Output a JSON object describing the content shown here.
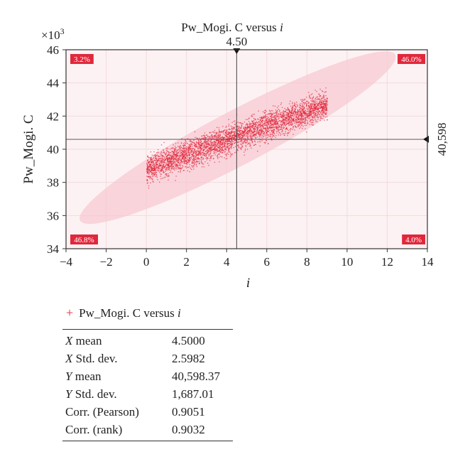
{
  "chart_data": {
    "type": "scatter",
    "title": "Pw_Mogi. C versus",
    "title_var": "i",
    "xlabel": "i",
    "ylabel": "Pw_Mogi. C",
    "y_multiplier_label": "×10",
    "y_multiplier_exp": "3",
    "xlim": [
      -4,
      14
    ],
    "ylim": [
      34,
      46
    ],
    "x_ticks": [
      "−4",
      "−2",
      "0",
      "2",
      "4",
      "6",
      "8",
      "10",
      "12",
      "14"
    ],
    "y_ticks": [
      "34",
      "36",
      "38",
      "40",
      "42",
      "44",
      "46"
    ],
    "x_tick_values": [
      -4,
      -2,
      0,
      2,
      4,
      6,
      8,
      10,
      12,
      14
    ],
    "y_tick_values": [
      34,
      36,
      38,
      40,
      42,
      44,
      46
    ],
    "crosshair": {
      "x": 4.5,
      "x_label": "4.50",
      "y": 40.598,
      "y_label": "40,598"
    },
    "quadrant_percent": {
      "top_left": "3.2%",
      "top_right": "46.0%",
      "bottom_left": "46.8%",
      "bottom_right": "4.0%"
    },
    "points_summary": {
      "x_range": [
        0,
        9
      ],
      "y_mean_at_x0": 38.85,
      "y_mean_at_x9": 42.75,
      "y_spread": 1.3,
      "count_approx": 4000
    },
    "confidence_ellipse": {
      "center": [
        4.5,
        40.598
      ],
      "x_extent": [
        -3.3,
        12.4
      ],
      "y_extent": [
        35.7,
        45.7
      ]
    },
    "colors": {
      "points": "#e0283c",
      "ellipse_fill": "#f7c9d3",
      "plot_bg": "#fdf2f3",
      "badge": "#e0283c"
    }
  },
  "legend": {
    "label": "Pw_Mogi. C versus",
    "var": "i"
  },
  "stats": [
    {
      "var": "X",
      "label": " mean",
      "value": "4.5000"
    },
    {
      "var": "X",
      "label": " Std. dev.",
      "value": "2.5982"
    },
    {
      "var": "Y",
      "label": " mean",
      "value": "40,598.37"
    },
    {
      "var": "Y",
      "label": " Std. dev.",
      "value": "1,687.01"
    },
    {
      "var": "",
      "label": "Corr. (Pearson)",
      "value": "0.9051"
    },
    {
      "var": "",
      "label": "Corr. (rank)",
      "value": "0.9032"
    }
  ]
}
